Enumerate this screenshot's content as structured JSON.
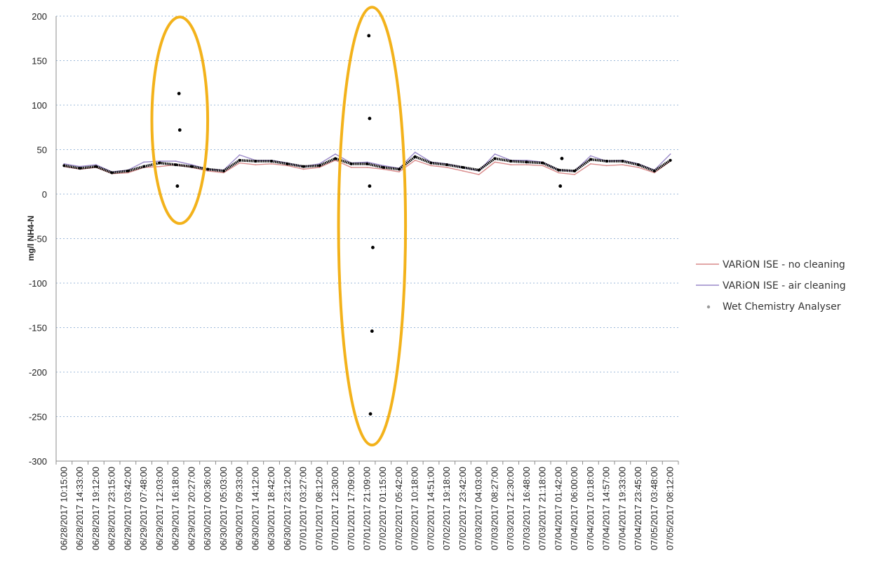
{
  "chart_data": {
    "type": "line",
    "title": "",
    "xlabel": "",
    "ylabel": "mg/l NH4-N",
    "ylim": [
      -300,
      200
    ],
    "yticks": [
      200,
      150,
      100,
      50,
      0,
      -50,
      -100,
      -150,
      -200,
      -250,
      -300
    ],
    "grid": "horizontal dotted",
    "legend_position": "right",
    "categories": [
      "06/28/2017 10:15:00",
      "06/28/2017 14:33:00",
      "06/28/2017 19:12:00",
      "06/28/2017 23:15:00",
      "06/29/2017 03:42:00",
      "06/29/2017 07:48:00",
      "06/29/2017 12:03:00",
      "06/29/2017 16:18:00",
      "06/29/2017 20:27:00",
      "06/30/2017 00:36:00",
      "06/30/2017 05:03:00",
      "06/30/2017 09:33:00",
      "06/30/2017 14:12:00",
      "06/30/2017 18:42:00",
      "06/30/2017 23:12:00",
      "07/01/2017 03:27:00",
      "07/01/2017 08:12:00",
      "07/01/2017 12:30:00",
      "07/01/2017 17:09:00",
      "07/01/2017 21:09:00",
      "07/02/2017 01:15:00",
      "07/02/2017 05:42:00",
      "07/02/2017 10:18:00",
      "07/02/2017 14:51:00",
      "07/02/2017 19:18:00",
      "07/02/2017 23:42:00",
      "07/03/2017 04:03:00",
      "07/03/2017 08:27:00",
      "07/03/2017 12:30:00",
      "07/03/2017 16:48:00",
      "07/03/2017 21:18:00",
      "07/04/2017 01:42:00",
      "07/04/2017 06:00:00",
      "07/04/2017 10:18:00",
      "07/04/2017 14:57:00",
      "07/04/2017 19:33:00",
      "07/04/2017 23:45:00",
      "07/05/2017 03:48:00",
      "07/05/2017 08:12:00"
    ],
    "series": [
      {
        "name": "VARiON ISE - no cleaning",
        "color": "#d98a8a",
        "kind": "line",
        "values": [
          31,
          28,
          30,
          23,
          24,
          30,
          31,
          33,
          30,
          26,
          24,
          35,
          33,
          34,
          32,
          28,
          30,
          38,
          30,
          30,
          28,
          25,
          38,
          32,
          30,
          26,
          22,
          36,
          33,
          33,
          32,
          24,
          22,
          34,
          32,
          33,
          30,
          24,
          37
        ]
      },
      {
        "name": "VARiON ISE - air cleaning",
        "color": "#9a88c8",
        "kind": "line",
        "values": [
          34,
          31,
          33,
          25,
          27,
          36,
          37,
          37,
          33,
          28,
          27,
          44,
          38,
          38,
          35,
          31,
          34,
          45,
          35,
          36,
          32,
          29,
          47,
          36,
          34,
          30,
          26,
          45,
          38,
          38,
          36,
          27,
          26,
          43,
          37,
          38,
          34,
          27,
          45
        ]
      },
      {
        "name": "Wet Chemistry Analyser",
        "color": "#000000",
        "kind": "marker",
        "values": [
          32,
          29,
          31,
          24,
          26,
          31,
          35,
          33,
          31,
          28,
          26,
          38,
          37,
          37,
          34,
          31,
          32,
          40,
          34,
          34,
          30,
          28,
          42,
          35,
          33,
          30,
          27,
          40,
          37,
          36,
          35,
          27,
          26,
          39,
          37,
          37,
          33,
          26,
          38
        ]
      }
    ],
    "outliers": [
      {
        "x": "06/29/2017 16:18:00",
        "x_offset": 0.2,
        "y": 113
      },
      {
        "x": "06/29/2017 16:18:00",
        "x_offset": 0.25,
        "y": 72
      },
      {
        "x": "06/29/2017 16:18:00",
        "x_offset": 0.1,
        "y": 9
      },
      {
        "x": "07/01/2017 21:09:00",
        "x_offset": 0.1,
        "y": 178
      },
      {
        "x": "07/01/2017 21:09:00",
        "x_offset": 0.15,
        "y": 85
      },
      {
        "x": "07/01/2017 21:09:00",
        "x_offset": 0.15,
        "y": 9
      },
      {
        "x": "07/01/2017 21:09:00",
        "x_offset": 0.35,
        "y": -60
      },
      {
        "x": "07/01/2017 21:09:00",
        "x_offset": 0.3,
        "y": -154
      },
      {
        "x": "07/01/2017 21:09:00",
        "x_offset": 0.2,
        "y": -247
      },
      {
        "x": "07/04/2017 01:42:00",
        "x_offset": 0.1,
        "y": 9
      },
      {
        "x": "07/04/2017 01:42:00",
        "x_offset": 0.2,
        "y": 40
      }
    ],
    "annotations": [
      {
        "shape": "ellipse",
        "color": "#f3b21b",
        "x_center": "06/29/2017 16:18:00",
        "x_offset": 0.25,
        "y_center": 84,
        "x_halfwidth_categories": 1.75,
        "y_top": 199,
        "y_bottom": -33
      },
      {
        "shape": "ellipse",
        "color": "#f3b21b",
        "x_center": "07/01/2017 21:09:00",
        "x_offset": 0.3,
        "y_center": -35,
        "x_halfwidth_categories": 2.1,
        "y_top": 210,
        "y_bottom": -282
      }
    ]
  }
}
